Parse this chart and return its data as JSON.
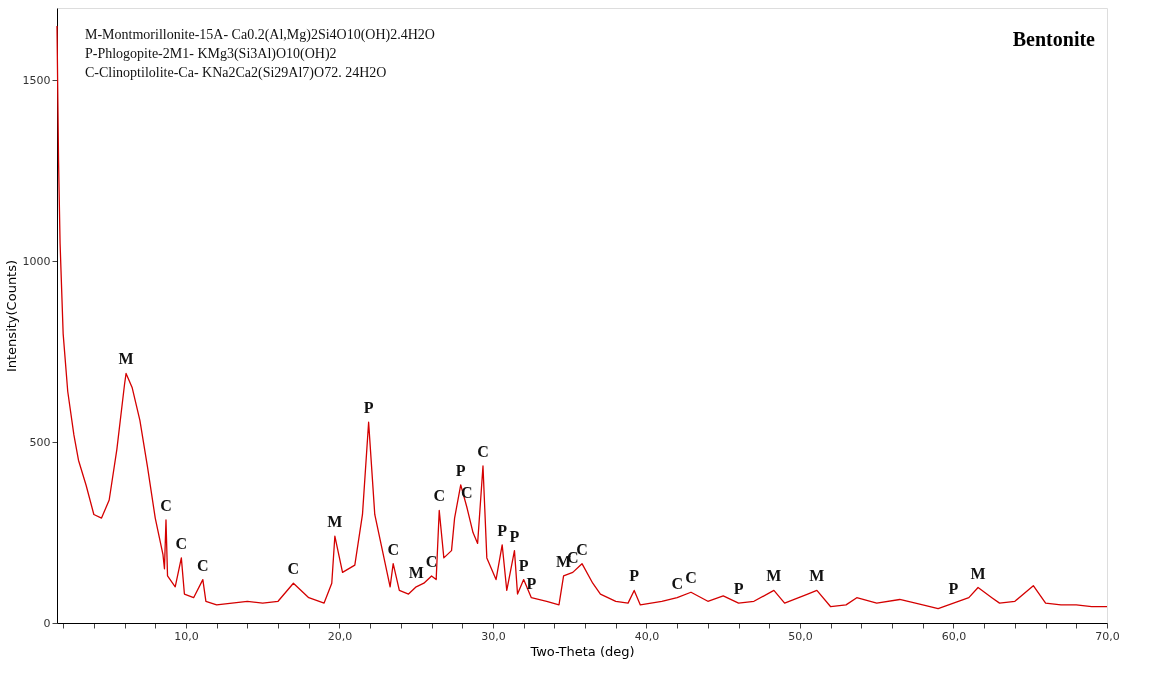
{
  "chart_data": {
    "type": "line",
    "title": "Bentonite",
    "xlabel": "Two-Theta (deg)",
    "ylabel": "Intensity(Counts)",
    "x": [
      1.6,
      1.7,
      1.8,
      2.0,
      2.3,
      2.7,
      3.0,
      3.5,
      4.0,
      4.5,
      5.0,
      5.5,
      6.0,
      6.1,
      6.5,
      7.0,
      7.5,
      8.0,
      8.5,
      8.6,
      8.7,
      8.8,
      9.3,
      9.7,
      9.9,
      10.5,
      11.1,
      11.3,
      12,
      13,
      14,
      15,
      16,
      17,
      18,
      19,
      19.5,
      19.7,
      20.2,
      21.0,
      21.5,
      21.9,
      22.3,
      22.8,
      23.3,
      23.5,
      23.9,
      24.5,
      25.0,
      25.5,
      26.0,
      26.3,
      26.5,
      26.8,
      27.3,
      27.5,
      27.9,
      28.3,
      28.7,
      29.0,
      29.35,
      29.6,
      30.2,
      30.6,
      30.9,
      31.4,
      31.6,
      32.0,
      32.5,
      33.5,
      34.3,
      34.6,
      35.2,
      35.8,
      36.5,
      37.0,
      38.0,
      38.8,
      39.2,
      39.6,
      41,
      42,
      42.9,
      44,
      45,
      46,
      47,
      48.3,
      49,
      50.5,
      51.1,
      52,
      53,
      53.7,
      55,
      56.5,
      58,
      59,
      60,
      61,
      61.6,
      62.5,
      63,
      64,
      65.2,
      66,
      67,
      68,
      69,
      70
    ],
    "series": [
      {
        "color": "#d40000",
        "values": [
          1650,
          1280,
          1050,
          800,
          640,
          520,
          450,
          380,
          300,
          290,
          340,
          480,
          660,
          690,
          650,
          560,
          430,
          290,
          190,
          150,
          285,
          130,
          100,
          180,
          80,
          70,
          120,
          60,
          50,
          55,
          60,
          55,
          60,
          110,
          70,
          55,
          110,
          240,
          140,
          160,
          300,
          555,
          300,
          200,
          100,
          164,
          90,
          80,
          100,
          110,
          130,
          120,
          311,
          180,
          200,
          290,
          382,
          320,
          250,
          220,
          434,
          180,
          120,
          216,
          90,
          200,
          80,
          120,
          70,
          60,
          50,
          130,
          140,
          164,
          110,
          80,
          60,
          55,
          90,
          50,
          60,
          70,
          85,
          60,
          75,
          55,
          60,
          90,
          55,
          80,
          90,
          45,
          50,
          70,
          55,
          65,
          50,
          40,
          55,
          70,
          98,
          70,
          55,
          60,
          103,
          55,
          50,
          50,
          45,
          45
        ]
      }
    ],
    "xlim": [
      1.6,
      70
    ],
    "ylim": [
      0,
      1700
    ],
    "xticks": [
      {
        "value": 2,
        "label": null
      },
      {
        "value": 4,
        "label": null
      },
      {
        "value": 6,
        "label": null
      },
      {
        "value": 8,
        "label": null
      },
      {
        "value": 10,
        "label": "10,0"
      },
      {
        "value": 12,
        "label": null
      },
      {
        "value": 14,
        "label": null
      },
      {
        "value": 16,
        "label": null
      },
      {
        "value": 18,
        "label": null
      },
      {
        "value": 20,
        "label": "20,0"
      },
      {
        "value": 22,
        "label": null
      },
      {
        "value": 24,
        "label": null
      },
      {
        "value": 26,
        "label": null
      },
      {
        "value": 28,
        "label": null
      },
      {
        "value": 30,
        "label": "30,0"
      },
      {
        "value": 32,
        "label": null
      },
      {
        "value": 34,
        "label": null
      },
      {
        "value": 36,
        "label": null
      },
      {
        "value": 38,
        "label": null
      },
      {
        "value": 40,
        "label": "40,0"
      },
      {
        "value": 42,
        "label": null
      },
      {
        "value": 44,
        "label": null
      },
      {
        "value": 46,
        "label": null
      },
      {
        "value": 48,
        "label": null
      },
      {
        "value": 50,
        "label": "50,0"
      },
      {
        "value": 52,
        "label": null
      },
      {
        "value": 54,
        "label": null
      },
      {
        "value": 56,
        "label": null
      },
      {
        "value": 58,
        "label": null
      },
      {
        "value": 60,
        "label": "60,0"
      },
      {
        "value": 62,
        "label": null
      },
      {
        "value": 64,
        "label": null
      },
      {
        "value": 66,
        "label": null
      },
      {
        "value": 68,
        "label": null
      },
      {
        "value": 70,
        "label": "70,0"
      }
    ],
    "yticks": [
      0,
      500,
      1000,
      1500
    ],
    "grid": false,
    "marker": "none",
    "line_style": "solid",
    "annotations": [
      "M-Montmorillonite-15A- Ca0.2(Al,Mg)2Si4O10(OH)2.4H2O",
      "P-Phlogopite-2M1- KMg3(Si3Al)O10(OH)2",
      "C-Clinoptilolite-Ca- KNa2Ca2(Si29Al7)O72. 24H2O",
      {
        "text": "M",
        "x": 6.1,
        "y": 690
      },
      {
        "text": "C",
        "x": 8.7,
        "y": 285
      },
      {
        "text": "C",
        "x": 9.7,
        "y": 180
      },
      {
        "text": "C",
        "x": 11.1,
        "y": 120
      },
      {
        "text": "C",
        "x": 17,
        "y": 110
      },
      {
        "text": "M",
        "x": 19.7,
        "y": 240
      },
      {
        "text": "P",
        "x": 21.9,
        "y": 555
      },
      {
        "text": "C",
        "x": 23.5,
        "y": 164
      },
      {
        "text": "M",
        "x": 25.0,
        "y": 100
      },
      {
        "text": "C",
        "x": 26.0,
        "y": 130
      },
      {
        "text": "C",
        "x": 26.5,
        "y": 311
      },
      {
        "text": "P",
        "x": 27.9,
        "y": 382
      },
      {
        "text": "C",
        "x": 28.3,
        "y": 320
      },
      {
        "text": "C",
        "x": 29.35,
        "y": 434
      },
      {
        "text": "P",
        "x": 30.6,
        "y": 216
      },
      {
        "text": "P",
        "x": 31.4,
        "y": 200
      },
      {
        "text": "P",
        "x": 32.0,
        "y": 120
      },
      {
        "text": "P",
        "x": 32.5,
        "y": 70
      },
      {
        "text": "M",
        "x": 34.6,
        "y": 130
      },
      {
        "text": "C",
        "x": 35.2,
        "y": 140
      },
      {
        "text": "C",
        "x": 35.8,
        "y": 164
      },
      {
        "text": "P",
        "x": 39.2,
        "y": 90
      },
      {
        "text": "C",
        "x": 42,
        "y": 70
      },
      {
        "text": "C",
        "x": 42.9,
        "y": 85
      },
      {
        "text": "P",
        "x": 46,
        "y": 55
      },
      {
        "text": "M",
        "x": 48.3,
        "y": 90
      },
      {
        "text": "M",
        "x": 51.1,
        "y": 90
      },
      {
        "text": "P",
        "x": 60,
        "y": 55
      },
      {
        "text": "M",
        "x": 61.6,
        "y": 98
      }
    ]
  }
}
